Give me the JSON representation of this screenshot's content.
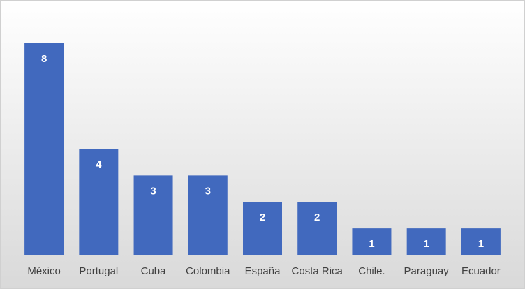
{
  "chart_data": {
    "type": "bar",
    "categories": [
      "México",
      "Portugal",
      "Cuba",
      "Colombia",
      "España",
      "Costa Rica",
      "Chile.",
      "Paraguay",
      "Ecuador"
    ],
    "values": [
      8,
      4,
      3,
      3,
      2,
      2,
      1,
      1,
      1
    ],
    "color": "#4169be",
    "ylim": [
      0,
      8
    ]
  }
}
